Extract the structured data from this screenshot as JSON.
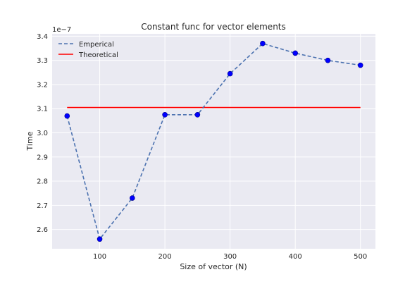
{
  "chart_data": {
    "type": "line",
    "title": "Constant func for vector elements",
    "xlabel": "Size of vector (N)",
    "ylabel": "Time",
    "offset_text": "1e−7",
    "xlim": [
      27,
      523
    ],
    "ylim": [
      2.52,
      3.41
    ],
    "xticks": [
      100,
      200,
      300,
      400,
      500
    ],
    "yticks": [
      2.6,
      2.7,
      2.8,
      2.9,
      3.0,
      3.1,
      3.2,
      3.3,
      3.4
    ],
    "ytick_labels": [
      "2.6",
      "2.7",
      "2.8",
      "2.9",
      "3.0",
      "3.1",
      "3.2",
      "3.3",
      "3.4"
    ],
    "grid": true,
    "legend_position": "top-left",
    "x": [
      50,
      100,
      150,
      200,
      250,
      300,
      350,
      400,
      450,
      500
    ],
    "series": [
      {
        "name": "Emperical",
        "style": "dashed",
        "color": "#4c72b0",
        "marker_color": "#0000ff",
        "values": [
          3.07,
          2.56,
          2.73,
          3.075,
          3.075,
          3.245,
          3.37,
          3.33,
          3.3,
          3.28
        ]
      },
      {
        "name": "Theoretical",
        "style": "solid",
        "color": "#ff0000",
        "values": [
          3.105,
          3.105,
          3.105,
          3.105,
          3.105,
          3.105,
          3.105,
          3.105,
          3.105,
          3.105
        ]
      }
    ],
    "colors": {
      "plot_background": "#eaeaf2",
      "grid": "#ffffff"
    }
  }
}
